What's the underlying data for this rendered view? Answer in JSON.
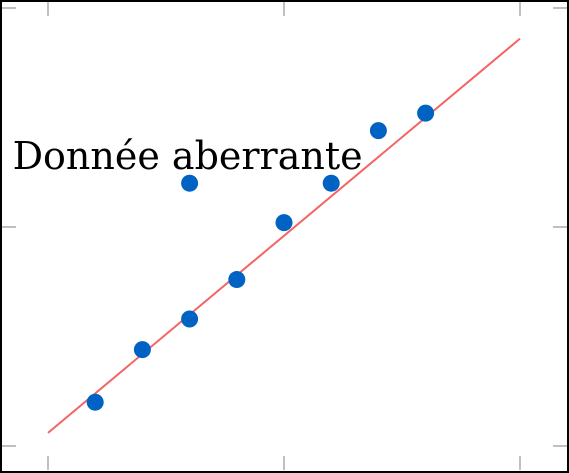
{
  "chart_data": {
    "type": "scatter",
    "title": "",
    "xlabel": "",
    "ylabel": "",
    "xlim": [
      0,
      10
    ],
    "ylim": [
      0,
      10
    ],
    "grid": false,
    "points": [
      {
        "x": 1,
        "y": 1
      },
      {
        "x": 2,
        "y": 2.2
      },
      {
        "x": 3,
        "y": 2.9
      },
      {
        "x": 3,
        "y": 6
      },
      {
        "x": 4,
        "y": 3.8
      },
      {
        "x": 5,
        "y": 5.1
      },
      {
        "x": 6,
        "y": 6
      },
      {
        "x": 7,
        "y": 7.2
      },
      {
        "x": 8,
        "y": 7.6
      }
    ],
    "fit_line": {
      "x": [
        0,
        10
      ],
      "y": [
        0.3,
        9.3
      ]
    },
    "annotation": {
      "text": "Donnée aberrante",
      "x": 3,
      "y": 6.6
    },
    "colors": {
      "points": "#0063c3",
      "line": "#f46464",
      "frame": "#000000",
      "ticks": "#808080"
    }
  }
}
